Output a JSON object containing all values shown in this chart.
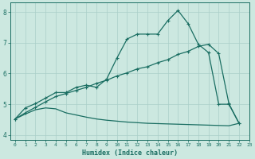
{
  "xlabel": "Humidex (Indice chaleur)",
  "background_color": "#cce8e0",
  "grid_color": "#aacfc8",
  "line_color": "#1a6e62",
  "xlim": [
    -0.5,
    23
  ],
  "ylim": [
    3.85,
    8.3
  ],
  "xticks": [
    0,
    1,
    2,
    3,
    4,
    5,
    6,
    7,
    8,
    9,
    10,
    11,
    12,
    13,
    14,
    15,
    16,
    17,
    18,
    19,
    20,
    21,
    22,
    23
  ],
  "yticks": [
    4,
    5,
    6,
    7,
    8
  ],
  "line1_x": [
    0,
    1,
    2,
    3,
    4,
    5,
    6,
    7,
    8,
    9,
    10,
    11,
    12,
    13,
    14,
    15,
    16,
    17,
    18,
    19,
    20,
    21,
    22
  ],
  "line1_y": [
    4.52,
    4.88,
    5.02,
    5.2,
    5.38,
    5.38,
    5.55,
    5.62,
    5.55,
    5.82,
    6.5,
    7.12,
    7.28,
    7.28,
    7.28,
    7.72,
    8.05,
    7.62,
    6.95,
    6.68,
    5.0,
    5.0,
    4.38
  ],
  "line2_x": [
    0,
    1,
    2,
    3,
    4,
    5,
    6,
    7,
    8,
    9,
    10,
    11,
    12,
    13,
    14,
    15,
    16,
    17,
    18,
    19,
    20,
    21,
    22
  ],
  "line2_y": [
    4.52,
    4.72,
    4.9,
    5.08,
    5.25,
    5.35,
    5.45,
    5.55,
    5.68,
    5.78,
    5.92,
    6.02,
    6.15,
    6.22,
    6.35,
    6.45,
    6.62,
    6.72,
    6.88,
    6.95,
    6.65,
    5.02,
    4.38
  ],
  "line3_x": [
    0,
    1,
    2,
    3,
    4,
    5,
    6,
    7,
    8,
    9,
    10,
    11,
    12,
    13,
    14,
    15,
    16,
    17,
    18,
    19,
    20,
    21,
    22
  ],
  "line3_y": [
    4.52,
    4.68,
    4.82,
    4.88,
    4.85,
    4.72,
    4.65,
    4.58,
    4.52,
    4.48,
    4.45,
    4.42,
    4.4,
    4.38,
    4.37,
    4.36,
    4.35,
    4.34,
    4.33,
    4.32,
    4.31,
    4.3,
    4.38
  ]
}
